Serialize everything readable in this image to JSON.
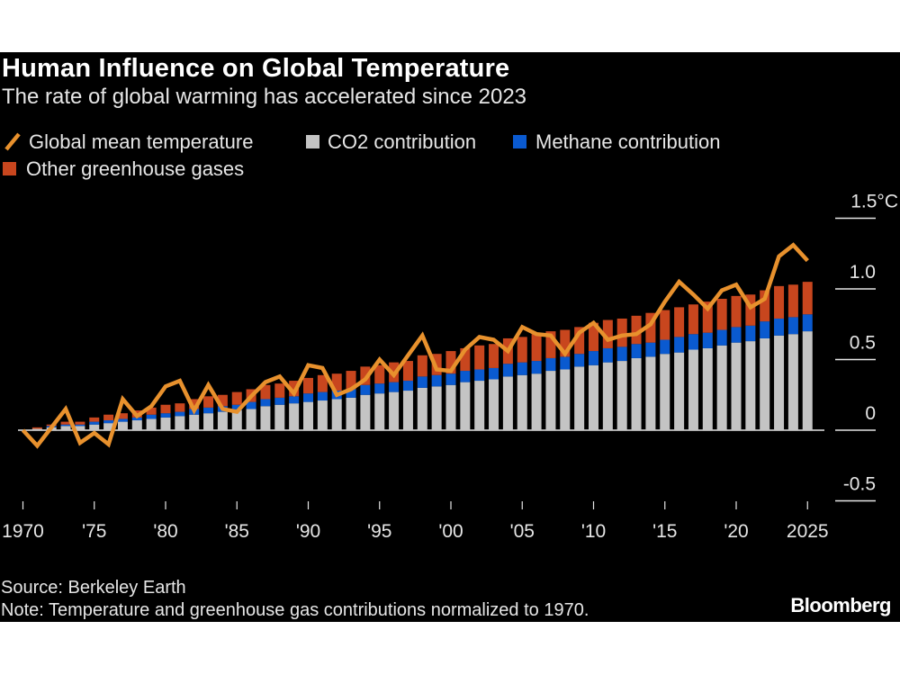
{
  "chart_data": {
    "type": "bar",
    "title": "Human Influence on Global Temperature",
    "subtitle": "The rate of global warming has accelerated since 2023",
    "unit": "°C",
    "x": [
      1970,
      1971,
      1972,
      1973,
      1974,
      1975,
      1976,
      1977,
      1978,
      1979,
      1980,
      1981,
      1982,
      1983,
      1984,
      1985,
      1986,
      1987,
      1988,
      1989,
      1990,
      1991,
      1992,
      1993,
      1994,
      1995,
      1996,
      1997,
      1998,
      1999,
      2000,
      2001,
      2002,
      2003,
      2004,
      2005,
      2006,
      2007,
      2008,
      2009,
      2010,
      2011,
      2012,
      2013,
      2014,
      2015,
      2016,
      2017,
      2018,
      2019,
      2020,
      2021,
      2022,
      2023,
      2024,
      2025
    ],
    "series": [
      {
        "name": "CO2 contribution",
        "kind": "stacked-bar",
        "color": "#c4c4c4",
        "values": [
          0,
          0.01,
          0.02,
          0.03,
          0.03,
          0.04,
          0.05,
          0.06,
          0.07,
          0.08,
          0.09,
          0.1,
          0.11,
          0.12,
          0.13,
          0.14,
          0.15,
          0.17,
          0.18,
          0.19,
          0.2,
          0.21,
          0.22,
          0.23,
          0.25,
          0.26,
          0.27,
          0.28,
          0.3,
          0.31,
          0.32,
          0.34,
          0.35,
          0.36,
          0.38,
          0.39,
          0.4,
          0.42,
          0.43,
          0.45,
          0.46,
          0.48,
          0.49,
          0.51,
          0.52,
          0.54,
          0.55,
          0.57,
          0.58,
          0.6,
          0.62,
          0.63,
          0.65,
          0.67,
          0.68,
          0.7
        ]
      },
      {
        "name": "Methane contribution",
        "kind": "stacked-bar",
        "color": "#0a5ad0",
        "values": [
          0,
          0.0,
          0.01,
          0.01,
          0.01,
          0.02,
          0.02,
          0.02,
          0.02,
          0.03,
          0.03,
          0.03,
          0.04,
          0.04,
          0.04,
          0.04,
          0.05,
          0.05,
          0.05,
          0.05,
          0.06,
          0.06,
          0.06,
          0.06,
          0.07,
          0.07,
          0.07,
          0.07,
          0.08,
          0.08,
          0.08,
          0.08,
          0.08,
          0.08,
          0.09,
          0.09,
          0.09,
          0.09,
          0.09,
          0.09,
          0.1,
          0.1,
          0.1,
          0.1,
          0.1,
          0.1,
          0.11,
          0.11,
          0.11,
          0.11,
          0.11,
          0.11,
          0.12,
          0.12,
          0.12,
          0.12
        ]
      },
      {
        "name": "Other greenhouse gases",
        "kind": "stacked-bar",
        "color": "#c8461e",
        "values": [
          0,
          0.01,
          0.01,
          0.02,
          0.02,
          0.03,
          0.04,
          0.04,
          0.05,
          0.05,
          0.06,
          0.06,
          0.07,
          0.08,
          0.08,
          0.09,
          0.09,
          0.1,
          0.1,
          0.11,
          0.11,
          0.12,
          0.12,
          0.13,
          0.13,
          0.13,
          0.14,
          0.14,
          0.15,
          0.15,
          0.16,
          0.16,
          0.17,
          0.17,
          0.18,
          0.18,
          0.19,
          0.19,
          0.19,
          0.19,
          0.2,
          0.2,
          0.2,
          0.2,
          0.21,
          0.21,
          0.21,
          0.21,
          0.22,
          0.22,
          0.22,
          0.22,
          0.22,
          0.23,
          0.23,
          0.23
        ]
      },
      {
        "name": "Global mean temperature",
        "kind": "line",
        "color": "#e8912d",
        "values": [
          0.0,
          -0.11,
          0.02,
          0.15,
          -0.09,
          -0.02,
          -0.1,
          0.22,
          0.1,
          0.17,
          0.31,
          0.35,
          0.14,
          0.32,
          0.15,
          0.13,
          0.24,
          0.34,
          0.38,
          0.26,
          0.46,
          0.44,
          0.25,
          0.29,
          0.36,
          0.5,
          0.39,
          0.53,
          0.67,
          0.43,
          0.42,
          0.57,
          0.66,
          0.64,
          0.56,
          0.73,
          0.68,
          0.67,
          0.54,
          0.69,
          0.76,
          0.64,
          0.67,
          0.68,
          0.75,
          0.91,
          1.05,
          0.96,
          0.86,
          0.99,
          1.03,
          0.87,
          0.93,
          1.23,
          1.31,
          1.2
        ]
      }
    ],
    "legend": [
      {
        "label": "Global mean temperature",
        "icon": "line-slash",
        "color": "#e8912d"
      },
      {
        "label": "CO2 contribution",
        "icon": "square",
        "color": "#c4c4c4"
      },
      {
        "label": "Methane contribution",
        "icon": "square",
        "color": "#0a5ad0"
      },
      {
        "label": "Other greenhouse gases",
        "icon": "square",
        "color": "#c8461e"
      }
    ],
    "legend_position": "top-left",
    "ylim": [
      -0.5,
      1.5
    ],
    "yticks": [
      {
        "v": 1.5,
        "label": "1.5°C"
      },
      {
        "v": 1.0,
        "label": "1.0"
      },
      {
        "v": 0.5,
        "label": "0.5"
      },
      {
        "v": 0,
        "label": "0"
      },
      {
        "v": -0.5,
        "label": "-0.5"
      }
    ],
    "xticks": [
      {
        "v": 1970,
        "label": "1970"
      },
      {
        "v": 1975,
        "label": "'75"
      },
      {
        "v": 1980,
        "label": "'80"
      },
      {
        "v": 1985,
        "label": "'85"
      },
      {
        "v": 1990,
        "label": "'90"
      },
      {
        "v": 1995,
        "label": "'95"
      },
      {
        "v": 2000,
        "label": "'00"
      },
      {
        "v": 2005,
        "label": "'05"
      },
      {
        "v": 2010,
        "label": "'10"
      },
      {
        "v": 2015,
        "label": "'15"
      },
      {
        "v": 2020,
        "label": "'20"
      },
      {
        "v": 2025,
        "label": "2025"
      }
    ],
    "yaxis_side": "right",
    "grid": false,
    "background": "#000000"
  },
  "footer": {
    "source": "Source: Berkeley Earth",
    "note": "Note: Temperature and greenhouse gas contributions normalized to 1970.",
    "brand": "Bloomberg"
  }
}
